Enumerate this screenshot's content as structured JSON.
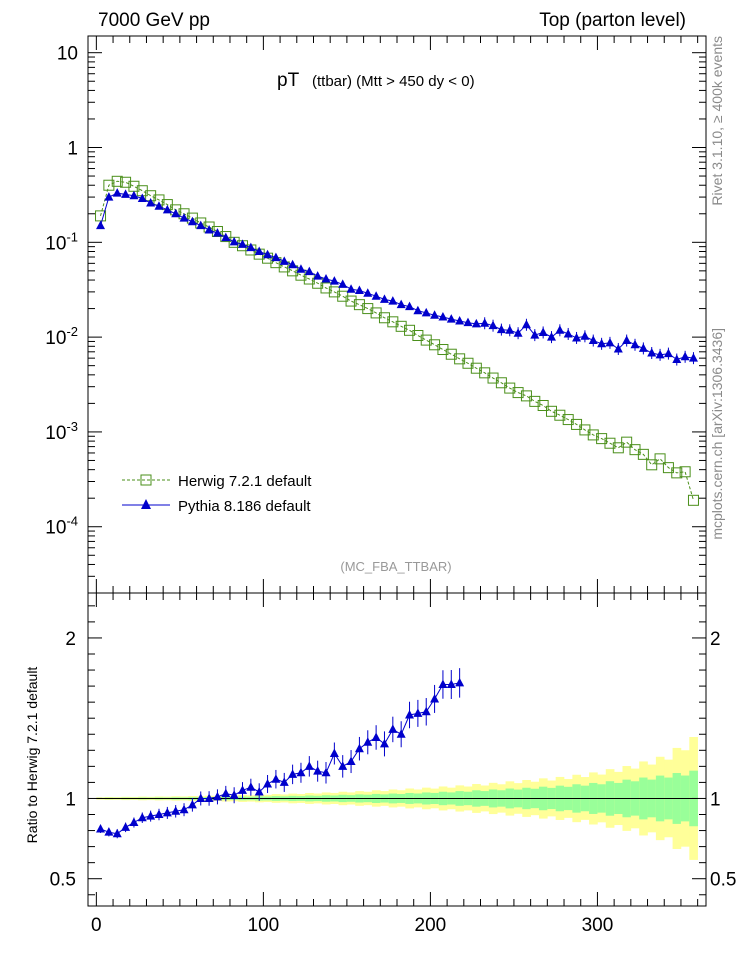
{
  "header": {
    "left": "7000 GeV pp",
    "right": "Top (parton level)"
  },
  "side_labels": {
    "rivet": "Rivet 3.1.10, ≥ 400k events",
    "mcplots": "mcplots.cern.ch [arXiv:1306.3436]"
  },
  "chart_data": [
    {
      "type": "scatter",
      "panel": "main",
      "title_main": "pT",
      "title_sub": "(ttbar) (Mtt > 450 dy < 0)",
      "watermark": "(MC_FBA_TTBAR)",
      "yscale": "log",
      "ylim": [
        2e-05,
        15
      ],
      "xlim": [
        -5,
        365
      ],
      "ytick_major": [
        {
          "value": 10,
          "base": "10",
          "exp": ""
        },
        {
          "value": 1,
          "base": "1",
          "exp": ""
        },
        {
          "value": 0.1,
          "base": "10",
          "exp": "-1"
        },
        {
          "value": 0.01,
          "base": "10",
          "exp": "-2"
        },
        {
          "value": 0.001,
          "base": "10",
          "exp": "-3"
        },
        {
          "value": 0.0001,
          "base": "10",
          "exp": "-4"
        }
      ],
      "legend": [
        {
          "name": "Herwig 7.2.1 default",
          "color": "#4a8f1a",
          "marker": "open-square",
          "line": "dashed"
        },
        {
          "name": "Pythia 8.186 default",
          "color": "#0000cc",
          "marker": "filled-triangle",
          "line": "solid"
        }
      ],
      "series": [
        {
          "name": "Herwig 7.2.1 default",
          "color": "#4a8f1a",
          "x": [
            2.5,
            7.5,
            12.5,
            17.5,
            22.5,
            27.5,
            32.5,
            37.5,
            42.5,
            47.5,
            52.5,
            57.5,
            62.5,
            67.5,
            72.5,
            77.5,
            82.5,
            87.5,
            92.5,
            97.5,
            102.5,
            107.5,
            112.5,
            117.5,
            122.5,
            127.5,
            132.5,
            137.5,
            142.5,
            147.5,
            152.5,
            157.5,
            162.5,
            167.5,
            172.5,
            177.5,
            182.5,
            187.5,
            192.5,
            197.5,
            202.5,
            207.5,
            212.5,
            217.5,
            222.5,
            227.5,
            232.5,
            237.5,
            242.5,
            247.5,
            252.5,
            257.5,
            262.5,
            267.5,
            272.5,
            277.5,
            282.5,
            287.5,
            292.5,
            297.5,
            302.5,
            307.5,
            312.5,
            317.5,
            322.5,
            327.5,
            332.5,
            337.5,
            342.5,
            347.5,
            352.5,
            357.5
          ],
          "y": [
            0.19,
            0.4,
            0.44,
            0.43,
            0.39,
            0.35,
            0.31,
            0.28,
            0.25,
            0.22,
            0.2,
            0.18,
            0.16,
            0.145,
            0.13,
            0.115,
            0.1,
            0.092,
            0.083,
            0.075,
            0.068,
            0.061,
            0.055,
            0.05,
            0.045,
            0.041,
            0.037,
            0.033,
            0.03,
            0.027,
            0.024,
            0.022,
            0.02,
            0.018,
            0.016,
            0.0145,
            0.013,
            0.0118,
            0.0104,
            0.0093,
            0.0083,
            0.0074,
            0.0066,
            0.0059,
            0.0053,
            0.0047,
            0.0042,
            0.0037,
            0.0033,
            0.0029,
            0.0026,
            0.0024,
            0.0021,
            0.0019,
            0.00165,
            0.0015,
            0.00135,
            0.0012,
            0.00105,
            0.00093,
            0.00085,
            0.00076,
            0.00068,
            0.00078,
            0.00065,
            0.00058,
            0.00045,
            0.00052,
            0.00042,
            0.00037,
            0.00038,
            0.00019
          ]
        },
        {
          "name": "Pythia 8.186 default",
          "color": "#0000cc",
          "x": [
            2.5,
            7.5,
            12.5,
            17.5,
            22.5,
            27.5,
            32.5,
            37.5,
            42.5,
            47.5,
            52.5,
            57.5,
            62.5,
            67.5,
            72.5,
            77.5,
            82.5,
            87.5,
            92.5,
            97.5,
            102.5,
            107.5,
            112.5,
            117.5,
            122.5,
            127.5,
            132.5,
            137.5,
            142.5,
            147.5,
            152.5,
            157.5,
            162.5,
            167.5,
            172.5,
            177.5,
            182.5,
            187.5,
            192.5,
            197.5,
            202.5,
            207.5,
            212.5,
            217.5,
            222.5,
            227.5,
            232.5,
            237.5,
            242.5,
            247.5,
            252.5,
            257.5,
            262.5,
            267.5,
            272.5,
            277.5,
            282.5,
            287.5,
            292.5,
            297.5,
            302.5,
            307.5,
            312.5,
            317.5,
            322.5,
            327.5,
            332.5,
            337.5,
            342.5,
            347.5,
            352.5,
            357.5
          ],
          "y": [
            0.15,
            0.3,
            0.33,
            0.32,
            0.31,
            0.29,
            0.26,
            0.24,
            0.22,
            0.2,
            0.18,
            0.165,
            0.15,
            0.135,
            0.125,
            0.112,
            0.101,
            0.095,
            0.088,
            0.08,
            0.074,
            0.069,
            0.063,
            0.058,
            0.052,
            0.049,
            0.044,
            0.041,
            0.039,
            0.036,
            0.032,
            0.031,
            0.029,
            0.027,
            0.025,
            0.024,
            0.022,
            0.021,
            0.019,
            0.018,
            0.017,
            0.0163,
            0.0155,
            0.0148,
            0.0142,
            0.0138,
            0.014,
            0.0132,
            0.012,
            0.0118,
            0.011,
            0.0135,
            0.0105,
            0.0112,
            0.01,
            0.0118,
            0.0108,
            0.0098,
            0.0102,
            0.0092,
            0.0085,
            0.0087,
            0.0075,
            0.0092,
            0.0083,
            0.0076,
            0.0068,
            0.0065,
            0.0067,
            0.0058,
            0.0062,
            0.006
          ]
        }
      ]
    },
    {
      "type": "scatter",
      "panel": "ratio",
      "ylabel": "Ratio to Herwig 7.2.1 default",
      "xlabel": "",
      "ylim": [
        0.33,
        2.28
      ],
      "xlim": [
        -5,
        365
      ],
      "xticks": [
        0,
        100,
        200,
        300
      ],
      "yticks": [
        0.5,
        1,
        2
      ],
      "reference_line": 1,
      "band_colors": {
        "inner": "#99ff99",
        "outer": "#ffff99",
        "line": "#009900"
      },
      "band_x_edges": [
        0,
        20,
        40,
        60,
        80,
        100,
        120,
        140,
        160,
        180,
        200,
        220,
        240,
        260,
        280,
        300,
        320,
        340,
        360
      ],
      "band_inner_halfwidth": [
        0.004,
        0.005,
        0.006,
        0.008,
        0.01,
        0.013,
        0.016,
        0.02,
        0.025,
        0.03,
        0.037,
        0.045,
        0.055,
        0.065,
        0.078,
        0.095,
        0.115,
        0.14,
        0.17
      ],
      "band_outer_halfwidth": [
        0.008,
        0.01,
        0.012,
        0.015,
        0.019,
        0.024,
        0.03,
        0.037,
        0.045,
        0.055,
        0.066,
        0.08,
        0.095,
        0.112,
        0.13,
        0.16,
        0.2,
        0.26,
        0.4
      ],
      "series": [
        {
          "name": "Pythia 8.186 default",
          "color": "#0000cc",
          "x": [
            2.5,
            7.5,
            12.5,
            17.5,
            22.5,
            27.5,
            32.5,
            37.5,
            42.5,
            47.5,
            52.5,
            57.5,
            62.5,
            67.5,
            72.5,
            77.5,
            82.5,
            87.5,
            92.5,
            97.5,
            102.5,
            107.5,
            112.5,
            117.5,
            122.5,
            127.5,
            132.5,
            137.5,
            142.5,
            147.5,
            152.5,
            157.5,
            162.5,
            167.5,
            172.5,
            177.5,
            182.5,
            187.5,
            192.5,
            197.5,
            202.5,
            207.5,
            212.5,
            217.5
          ],
          "y": [
            0.81,
            0.79,
            0.78,
            0.82,
            0.85,
            0.88,
            0.89,
            0.9,
            0.91,
            0.92,
            0.93,
            0.96,
            1.0,
            1.0,
            1.01,
            1.03,
            1.02,
            1.05,
            1.07,
            1.04,
            1.09,
            1.12,
            1.1,
            1.15,
            1.16,
            1.2,
            1.17,
            1.16,
            1.28,
            1.2,
            1.23,
            1.31,
            1.35,
            1.38,
            1.34,
            1.43,
            1.4,
            1.52,
            1.53,
            1.54,
            1.62,
            1.71,
            1.71,
            1.72
          ]
        }
      ]
    }
  ]
}
